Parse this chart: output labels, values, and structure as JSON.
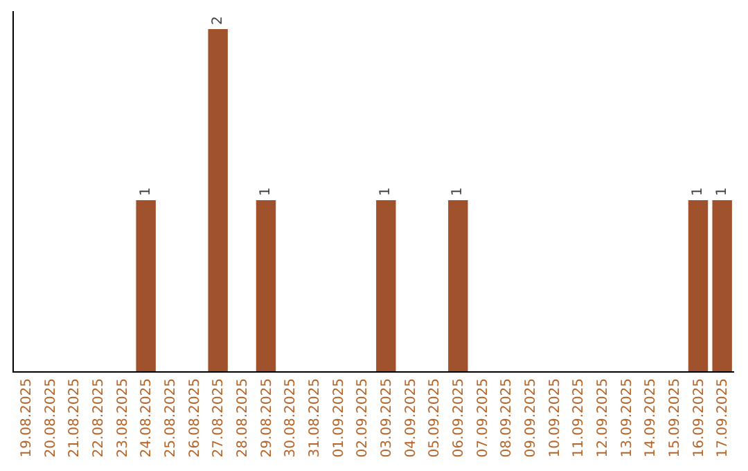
{
  "chart_data": {
    "type": "bar",
    "categories": [
      "19.08.2025",
      "20.08.2025",
      "21.08.2025",
      "22.08.2025",
      "23.08.2025",
      "24.08.2025",
      "25.08.2025",
      "26.08.2025",
      "27.08.2025",
      "28.08.2025",
      "29.08.2025",
      "30.08.2025",
      "31.08.2025",
      "01.09.2025",
      "02.09.2025",
      "03.09.2025",
      "04.09.2025",
      "05.09.2025",
      "06.09.2025",
      "07.09.2025",
      "08.09.2025",
      "09.09.2025",
      "10.09.2025",
      "11.09.2025",
      "12.09.2025",
      "13.09.2025",
      "14.09.2025",
      "15.09.2025",
      "16.09.2025",
      "17.09.2025"
    ],
    "values": [
      0,
      0,
      0,
      0,
      0,
      1,
      0,
      0,
      2,
      0,
      1,
      0,
      0,
      0,
      0,
      1,
      0,
      0,
      1,
      0,
      0,
      0,
      0,
      0,
      0,
      0,
      0,
      0,
      1,
      1
    ],
    "value_labels": [
      null,
      null,
      null,
      null,
      null,
      "1",
      null,
      null,
      "2",
      null,
      "1",
      null,
      null,
      null,
      null,
      "1",
      null,
      null,
      "1",
      null,
      null,
      null,
      null,
      null,
      null,
      null,
      null,
      null,
      "1",
      "1"
    ],
    "color": "#a0522d",
    "tick_labels": "x",
    "grid": false,
    "legend": false
  }
}
